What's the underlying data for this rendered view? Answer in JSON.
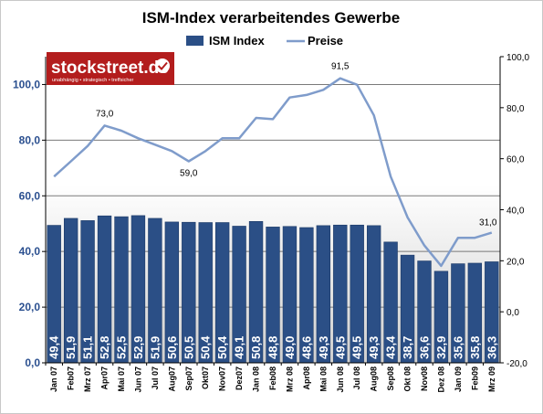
{
  "chart_data": {
    "type": "bar",
    "title": "ISM-Index verarbeitendes Gewerbe",
    "categories": [
      "Jan 07",
      "Feb07",
      "Mrz 07",
      "Apr07",
      "Mai 07",
      "Jun 07",
      "Jul 07",
      "Aug07",
      "Sep07",
      "Okt07",
      "Nov07",
      "Dez07",
      "Jan 08",
      "Feb08",
      "Mrz 08",
      "Apr08",
      "Mai 08",
      "Jun 08",
      "Jul 08",
      "Aug08",
      "Sep08",
      "Okt 08",
      "Nov08",
      "Dez 08",
      "Jan 09",
      "Feb09",
      "Mrz 09"
    ],
    "series": [
      {
        "name": "ISM Index",
        "type": "bar",
        "axis": "left",
        "color": "#2b4f86",
        "values": [
          49.4,
          51.9,
          51.1,
          52.8,
          52.5,
          52.9,
          51.9,
          50.6,
          50.5,
          50.4,
          50.4,
          49.1,
          50.8,
          48.8,
          49.0,
          48.6,
          49.3,
          49.5,
          49.5,
          49.3,
          43.4,
          38.7,
          36.6,
          32.9,
          35.6,
          35.8,
          36.3
        ],
        "labels": [
          "49,4",
          "51,9",
          "51,1",
          "52,8",
          "52,5",
          "52,9",
          "51,9",
          "50,6",
          "50,5",
          "50,4",
          "50,4",
          "49,1",
          "50,8",
          "48,8",
          "49,0",
          "48,6",
          "49,3",
          "49,5",
          "49,5",
          "49,3",
          "43,4",
          "38,7",
          "36,6",
          "32,9",
          "35,6",
          "35,8",
          "36,3"
        ]
      },
      {
        "name": "Preise",
        "type": "line",
        "axis": "right",
        "color": "#7f9ccb",
        "values": [
          53,
          59,
          65,
          73,
          71,
          68,
          65.5,
          63,
          59,
          63,
          68,
          68,
          76,
          75.5,
          84,
          85,
          87,
          91.5,
          89,
          77,
          53,
          37,
          26,
          18,
          29,
          29,
          31
        ]
      }
    ],
    "y_left": {
      "min": 0,
      "max": 110,
      "ticks": [
        "0,0",
        "20,0",
        "40,0",
        "60,0",
        "80,0",
        "100,0"
      ]
    },
    "y_right": {
      "min": -20,
      "max": 100,
      "ticks": [
        "-20,0",
        "0,0",
        "20,0",
        "40,0",
        "60,0",
        "80,0",
        "100,0"
      ]
    },
    "annotations": [
      {
        "index": 3,
        "text": "73,0"
      },
      {
        "index": 8,
        "text": "59,0"
      },
      {
        "index": 17,
        "text": "91,5"
      },
      {
        "index": 26,
        "text": "31,0"
      }
    ],
    "grid": true,
    "legend_position": "top"
  },
  "logo": {
    "name": "stockstreet.de",
    "tagline": "unabhängig • strategisch • treffsicher"
  }
}
